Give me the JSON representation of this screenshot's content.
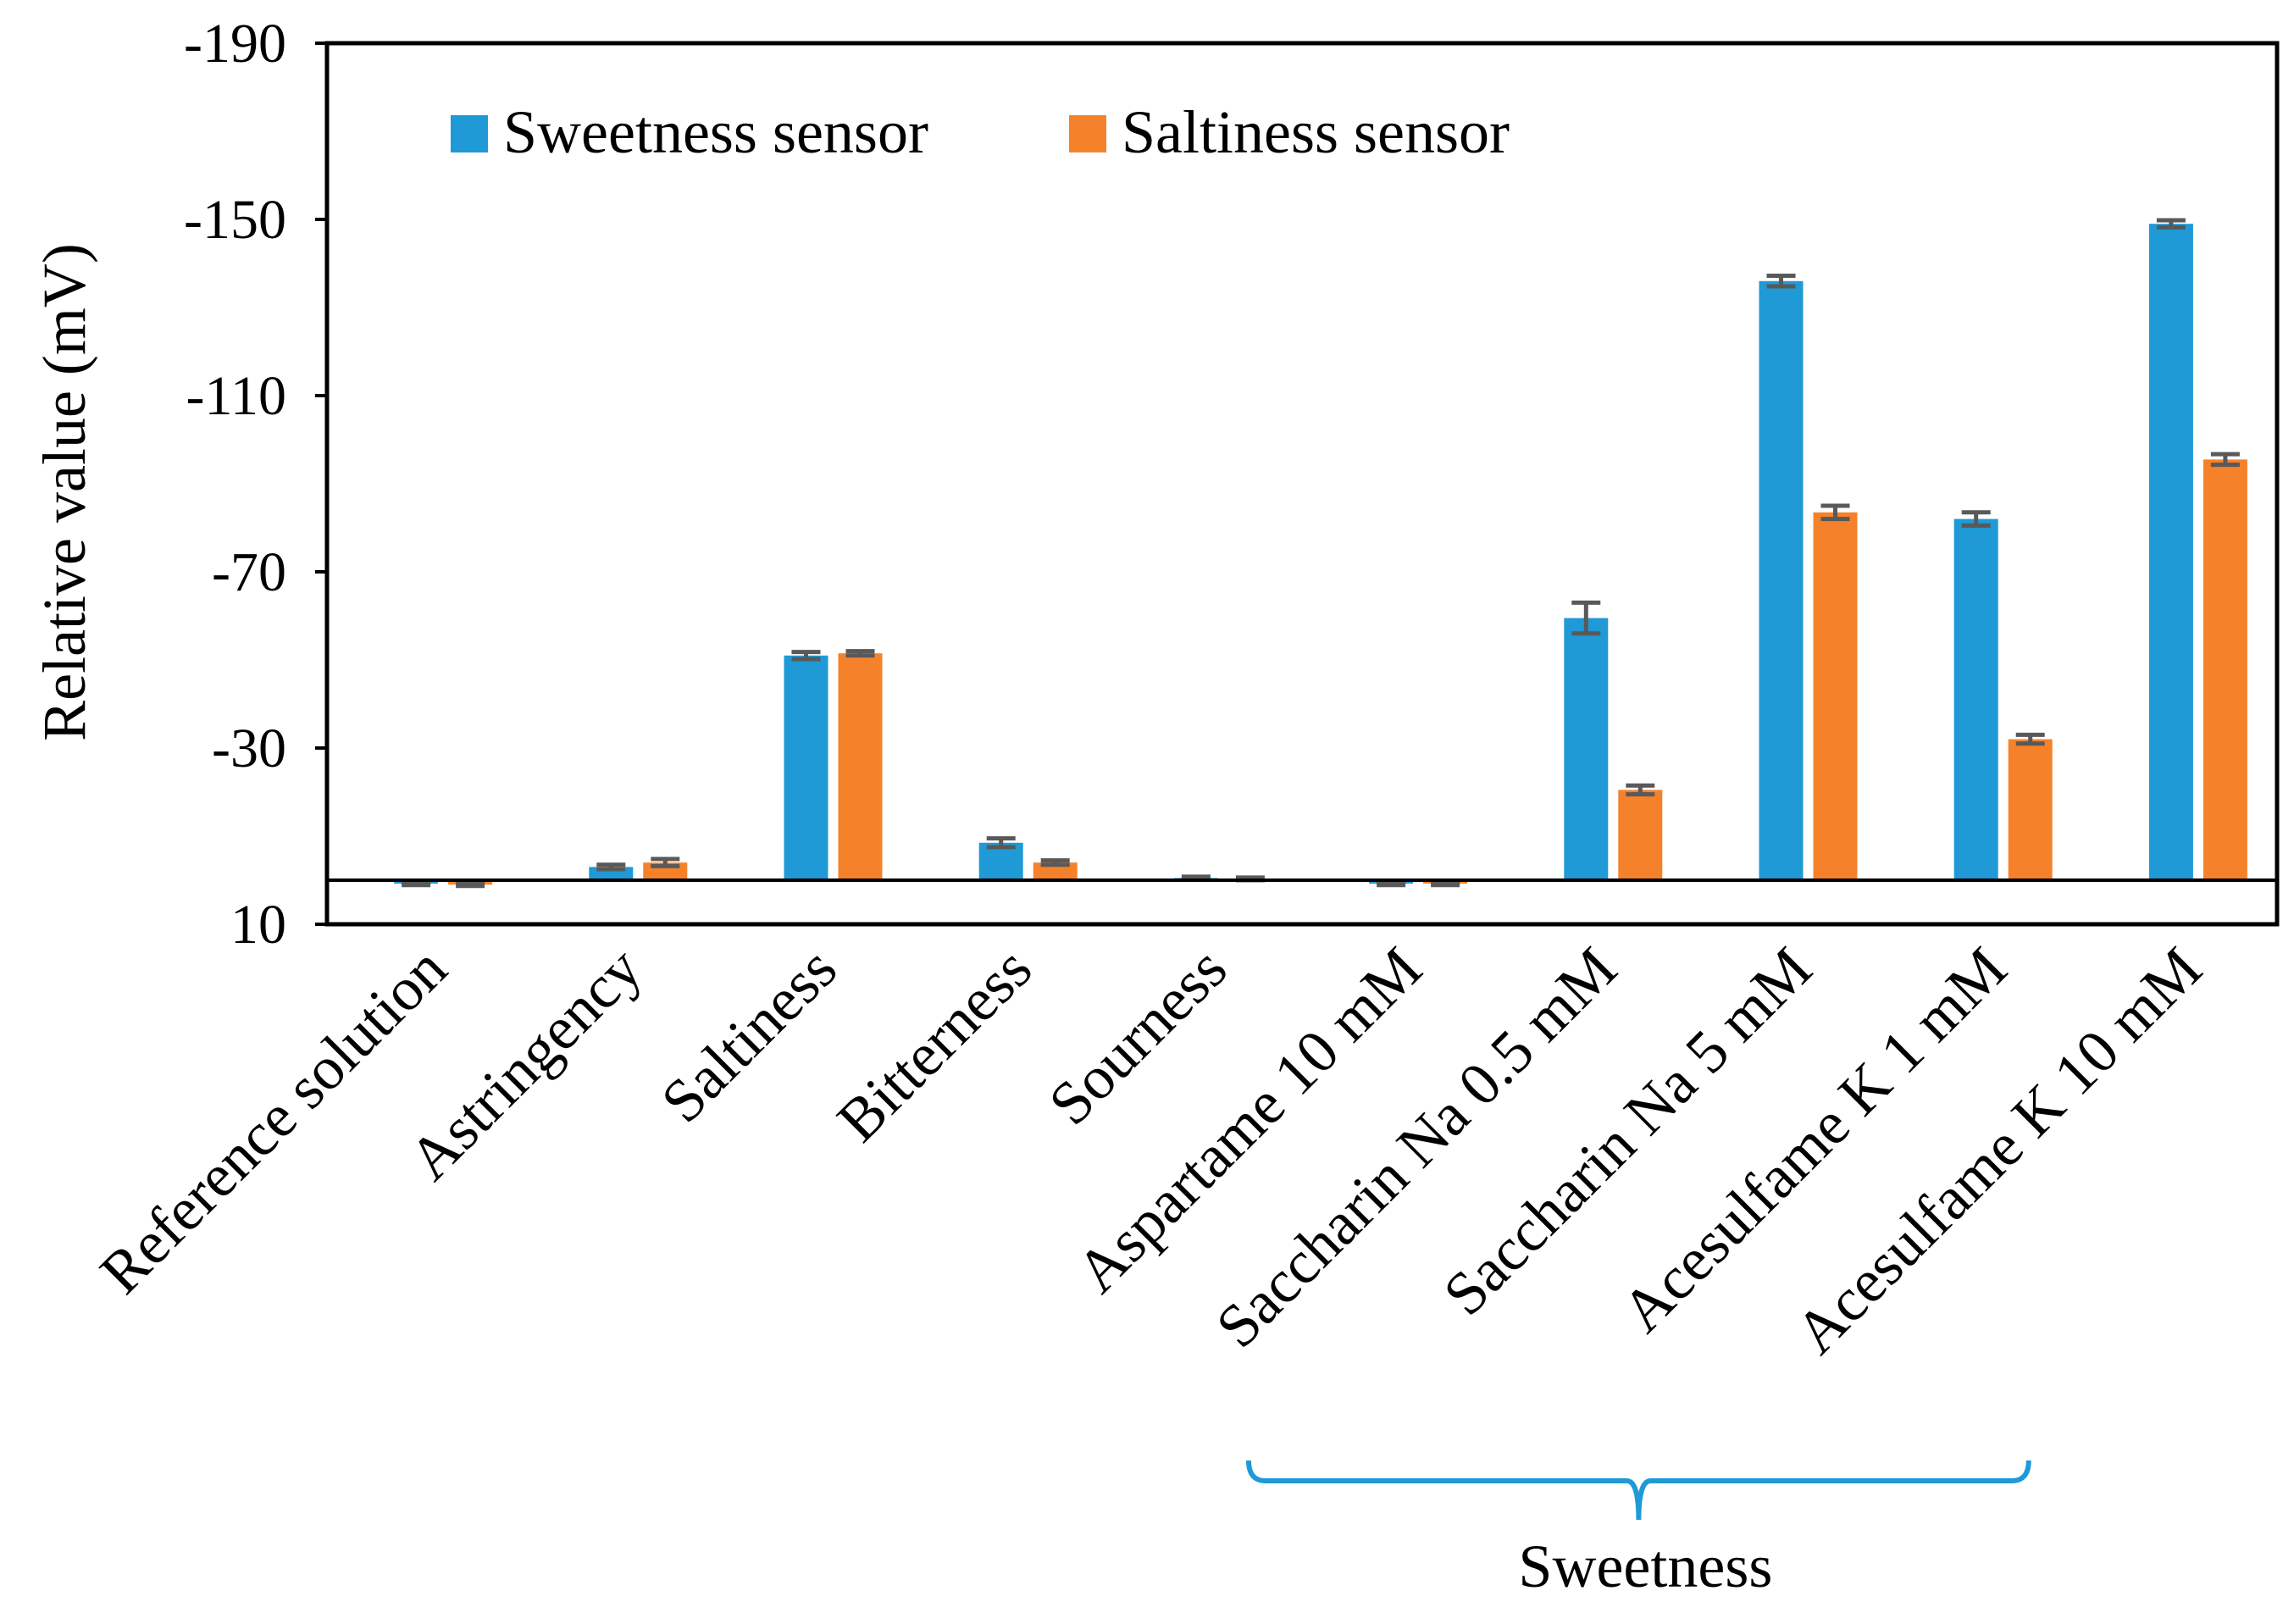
{
  "chart_data": {
    "type": "bar",
    "title": "",
    "xlabel": "",
    "ylabel": "Relative value (mV)",
    "ylim": [
      10,
      -190
    ],
    "yticks": [
      10,
      -30,
      -70,
      -110,
      -150,
      -190
    ],
    "ytick_labels": [
      "10",
      "-30",
      "-70",
      "-110",
      "-150",
      "-190"
    ],
    "baseline": 0,
    "categories": [
      "Reference solution",
      "Astringency",
      "Saltiness",
      "Bitterness",
      "Sourness",
      "Aspartame 10 mM",
      "Saccharin Na 0.5 mM",
      "Saccharin Na 5 mM",
      "Acesulfame K 1 mM",
      "Acesulfame K 10 mM"
    ],
    "series": [
      {
        "name": "Sweetness sensor",
        "color": "#1f9ad6",
        "values": [
          0.8,
          -3.0,
          -51.0,
          -8.5,
          -0.5,
          0.8,
          -59.5,
          -136.0,
          -82.0,
          -149.0
        ],
        "errors": [
          0.3,
          0.5,
          0.8,
          1.0,
          0.3,
          0.3,
          3.5,
          1.2,
          1.5,
          0.8
        ]
      },
      {
        "name": "Saltiness sensor",
        "color": "#f5822a",
        "values": [
          1.0,
          -4.0,
          -51.5,
          -4.0,
          -0.3,
          0.8,
          -20.5,
          -83.5,
          -32.0,
          -95.5
        ],
        "errors": [
          0.3,
          0.8,
          0.5,
          0.5,
          0.3,
          0.3,
          1.0,
          1.5,
          1.0,
          1.2
        ]
      }
    ],
    "error_bar_color": "#595959",
    "legend": {
      "position": "top-left"
    },
    "group_annotation": {
      "label": "Sweetness",
      "color": "#1f9ad6",
      "from_category": 5,
      "to_category": 9
    }
  }
}
